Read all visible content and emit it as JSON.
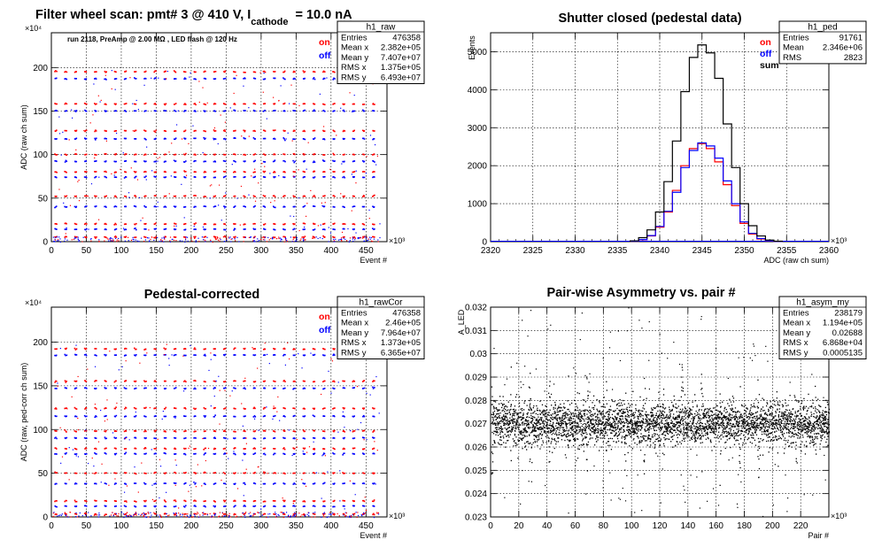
{
  "chart_data": [
    {
      "type": "scatter",
      "title": "Filter wheel scan: pmt#   3 @   410 V, I",
      "title_subscript": "cathode",
      "title_tail": "= 10.0 nA",
      "xlabel": "Event #",
      "ylabel": "ADC (raw ch sum)",
      "x_exponent": "×10³",
      "y_exponent": "×10⁴",
      "xlim": [
        0,
        480
      ],
      "ylim": [
        0,
        240
      ],
      "xticks": [
        0,
        50,
        100,
        150,
        200,
        250,
        300,
        350,
        400,
        450
      ],
      "yticks": [
        0,
        50,
        100,
        150,
        200
      ],
      "annotation": "run 2118, PreAmp @ 2.00 MΩ , LED flash @  120 Hz",
      "legend": [
        {
          "label": "on",
          "color": "#ff0000"
        },
        {
          "label": "off",
          "color": "#0000ff"
        }
      ],
      "levels": [
        195,
        187,
        158,
        150,
        127,
        118,
        100,
        92,
        80,
        74,
        52,
        40,
        20,
        14,
        5
      ],
      "stats": {
        "name": "h1_raw",
        "rows": [
          [
            "Entries",
            "476358"
          ],
          [
            "Mean x",
            "2.382e+05"
          ],
          [
            "Mean y",
            "7.407e+07"
          ],
          [
            "RMS x",
            "1.375e+05"
          ],
          [
            "RMS y",
            "6.493e+07"
          ]
        ]
      }
    },
    {
      "type": "line",
      "title": "Shutter closed (pedestal data)",
      "xlabel": "ADC (raw ch sum)",
      "ylabel": "Events",
      "x_exponent": "×10³",
      "xlim": [
        2320,
        2360
      ],
      "ylim": [
        0,
        5500
      ],
      "xticks": [
        2320,
        2325,
        2330,
        2335,
        2340,
        2345,
        2350,
        2355,
        2360
      ],
      "yticks": [
        0,
        1000,
        2000,
        3000,
        4000,
        5000
      ],
      "series": [
        {
          "name": "on",
          "color": "#ff0000",
          "x": [
            2337,
            2338,
            2339,
            2340,
            2341,
            2342,
            2343,
            2344,
            2345,
            2346,
            2347,
            2348,
            2349,
            2350,
            2351,
            2352,
            2353,
            2354
          ],
          "values": [
            10,
            50,
            150,
            380,
            780,
            1350,
            2000,
            2450,
            2580,
            2450,
            2100,
            1500,
            950,
            480,
            200,
            70,
            20,
            5
          ]
        },
        {
          "name": "off",
          "color": "#0000ff",
          "x": [
            2337,
            2338,
            2339,
            2340,
            2341,
            2342,
            2343,
            2344,
            2345,
            2346,
            2347,
            2348,
            2349,
            2350,
            2351,
            2352,
            2353,
            2354
          ],
          "values": [
            12,
            55,
            160,
            400,
            800,
            1300,
            1950,
            2400,
            2600,
            2520,
            2200,
            1600,
            1000,
            520,
            220,
            80,
            22,
            6
          ]
        },
        {
          "name": "sum",
          "color": "#000000",
          "x": [
            2337,
            2338,
            2339,
            2340,
            2341,
            2342,
            2343,
            2344,
            2345,
            2346,
            2347,
            2348,
            2349,
            2350,
            2351,
            2352,
            2353,
            2354
          ],
          "values": [
            22,
            105,
            310,
            780,
            1580,
            2650,
            3950,
            4850,
            5180,
            4970,
            4300,
            3100,
            1950,
            1000,
            420,
            150,
            42,
            11
          ]
        }
      ],
      "stats": {
        "name": "h1_ped",
        "rows": [
          [
            "Entries",
            "91761"
          ],
          [
            "Mean",
            "2.346e+06"
          ],
          [
            "RMS",
            "2823"
          ]
        ]
      }
    },
    {
      "type": "scatter",
      "title": "Pedestal-corrected",
      "xlabel": "Event #",
      "ylabel": "ADC (raw, ped-corr ch sum)",
      "x_exponent": "×10³",
      "y_exponent": "×10⁴",
      "xlim": [
        0,
        480
      ],
      "ylim": [
        0,
        240
      ],
      "xticks": [
        0,
        50,
        100,
        150,
        200,
        250,
        300,
        350,
        400,
        450
      ],
      "yticks": [
        0,
        50,
        100,
        150,
        200
      ],
      "legend": [
        {
          "label": "on",
          "color": "#ff0000"
        },
        {
          "label": "off",
          "color": "#0000ff"
        }
      ],
      "levels": [
        192,
        185,
        155,
        147,
        124,
        115,
        98,
        90,
        78,
        72,
        50,
        38,
        18,
        12,
        3
      ],
      "stats": {
        "name": "h1_rawCor",
        "rows": [
          [
            "Entries",
            "476358"
          ],
          [
            "Mean x",
            "2.46e+05"
          ],
          [
            "Mean y",
            "7.964e+07"
          ],
          [
            "RMS x",
            "1.373e+05"
          ],
          [
            "RMS y",
            "6.365e+07"
          ]
        ]
      }
    },
    {
      "type": "scatter",
      "title": "Pair-wise Asymmetry vs. pair #",
      "xlabel": "Pair #",
      "ylabel": "A_LED",
      "x_exponent": "×10³",
      "xlim": [
        0,
        240
      ],
      "ylim": [
        0.023,
        0.032
      ],
      "xticks": [
        0,
        20,
        40,
        60,
        80,
        100,
        120,
        140,
        160,
        180,
        200,
        220
      ],
      "yticks": [
        0.023,
        0.024,
        0.025,
        0.026,
        0.027,
        0.028,
        0.029,
        0.03,
        0.031,
        0.032
      ],
      "band_center": 0.027,
      "band_halfwidth": 0.0008,
      "stats": {
        "name": "h1_asym_my",
        "rows": [
          [
            "Entries",
            "238179"
          ],
          [
            "Mean x",
            "1.194e+05"
          ],
          [
            "Mean y",
            "0.02688"
          ],
          [
            "RMS x",
            "6.868e+04"
          ],
          [
            "RMS y",
            "0.0005135"
          ]
        ]
      }
    }
  ]
}
